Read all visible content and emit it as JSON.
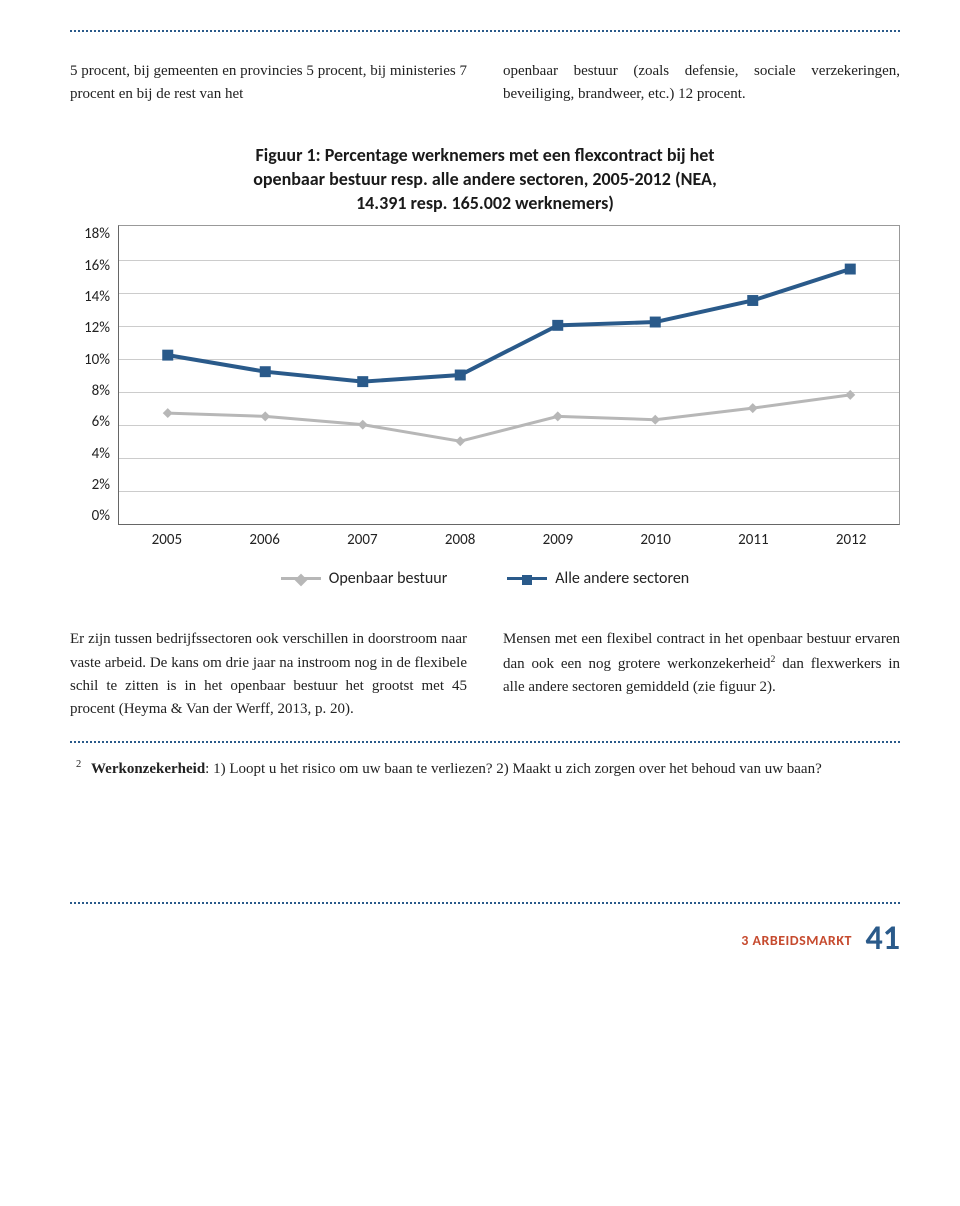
{
  "top_paragraphs": {
    "left": "5 procent, bij gemeenten en provincies 5 procent, bij ministeries 7 procent en bij de rest van het",
    "right": "openbaar bestuur (zoals defensie, sociale verzekeringen, beveiliging, brandweer, etc.) 12 procent."
  },
  "figure1": {
    "type": "line",
    "title_lines": [
      "Figuur 1: Percentage werknemers met een flexcontract bij het",
      "openbaar bestuur resp. alle andere sectoren, 2005-2012 (NEA,",
      "14.391 resp. 165.002 werknemers)"
    ],
    "x_categories": [
      "2005",
      "2006",
      "2007",
      "2008",
      "2009",
      "2010",
      "2011",
      "2012"
    ],
    "y_ticks": [
      "18%",
      "16%",
      "14%",
      "12%",
      "10%",
      "8%",
      "6%",
      "4%",
      "2%",
      "0%"
    ],
    "ylim": [
      0,
      18
    ],
    "ytick_step": 2,
    "series": [
      {
        "name": "Openbaar bestuur",
        "color": "#b7b7b7",
        "line_width": 3,
        "marker": "diamond",
        "marker_size": 8,
        "values": [
          6.7,
          6.5,
          6.0,
          5.0,
          6.5,
          6.3,
          7.0,
          7.8
        ]
      },
      {
        "name": "Alle andere sectoren",
        "color": "#2a5a8a",
        "line_width": 4,
        "marker": "square",
        "marker_size": 11,
        "values": [
          10.2,
          9.2,
          8.6,
          9.0,
          12.0,
          12.2,
          13.5,
          15.4
        ]
      }
    ],
    "background_color": "#ffffff",
    "grid_color": "#cccccc",
    "axis_color": "#666666",
    "title_fontsize": 18,
    "label_fontsize": 15,
    "legend_position": "bottom-center"
  },
  "mid_paragraphs": {
    "left": "Er zijn tussen bedrijfssectoren ook verschillen in doorstroom naar vaste arbeid. De kans om drie jaar na instroom nog in de flexibele schil te zitten is in het openbaar bestuur het grootst met 45 procent (Heyma & Van der Werff, 2013, p. 20).",
    "right_before_sup": "Mensen met een flexibel contract in het openbaar bestuur ervaren dan ook een nog grotere werkonzekerheid",
    "right_sup": "2",
    "right_after_sup": " dan flexwerkers in alle andere sectoren gemiddeld (zie figuur 2)."
  },
  "footnote": {
    "num": "2",
    "bold": "Werkonzekerheid",
    "rest": ": 1) Loopt u het risico om uw baan te verliezen? 2) Maakt u zich zorgen over het behoud van uw baan?"
  },
  "page_footer": {
    "section": "3 ARBEIDSMARKT",
    "page": "41"
  },
  "colors": {
    "brand_blue": "#2a5a8a",
    "accent_orange": "#c64a2e"
  }
}
